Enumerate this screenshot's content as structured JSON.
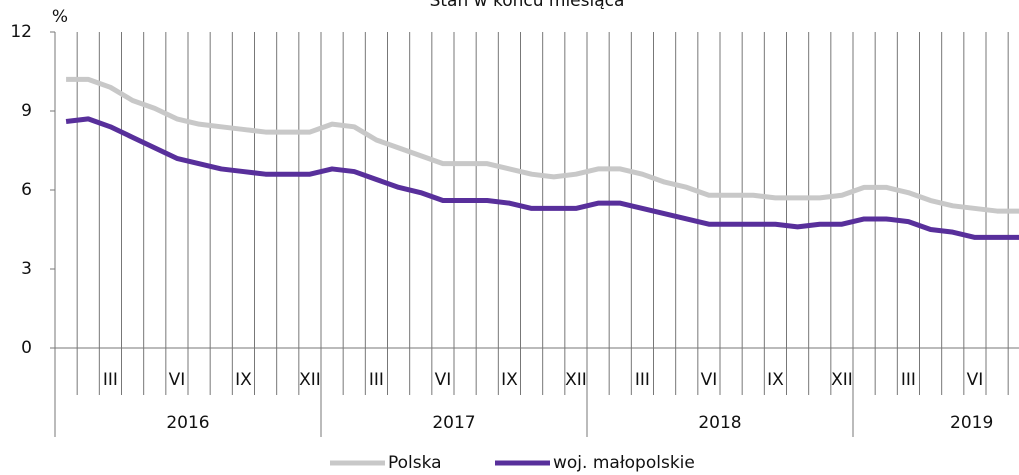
{
  "chart_data": {
    "type": "line",
    "title": "Stan w końcu miesiąca",
    "y_label": "%",
    "categories": [
      null,
      null,
      "III",
      null,
      null,
      "VI",
      null,
      null,
      "IX",
      null,
      null,
      "XII",
      null,
      null,
      "III",
      null,
      null,
      "VI",
      null,
      null,
      "IX",
      null,
      null,
      "XII",
      null,
      null,
      "III",
      null,
      null,
      "VI",
      null,
      null,
      "IX",
      null,
      null,
      "XII",
      null,
      null,
      "III",
      null,
      null,
      "VI",
      null,
      null
    ],
    "years": [
      "2016",
      "2017",
      "2018",
      "2019"
    ],
    "series": [
      {
        "name": "Polska",
        "color": "#c8c8c8",
        "values": [
          10.2,
          10.2,
          9.9,
          9.4,
          9.1,
          8.7,
          8.5,
          8.4,
          8.3,
          8.2,
          8.2,
          8.2,
          8.5,
          8.4,
          7.9,
          7.6,
          7.3,
          7.0,
          7.0,
          7.0,
          6.8,
          6.6,
          6.5,
          6.6,
          6.8,
          6.8,
          6.6,
          6.3,
          6.1,
          5.8,
          5.8,
          5.8,
          5.7,
          5.7,
          5.7,
          5.8,
          6.1,
          6.1,
          5.9,
          5.6,
          5.4,
          5.3,
          5.2,
          5.2
        ]
      },
      {
        "name": "woj. małopolskie",
        "color": "#582f9b",
        "values": [
          8.6,
          8.7,
          8.4,
          8.0,
          7.6,
          7.2,
          7.0,
          6.8,
          6.7,
          6.6,
          6.6,
          6.6,
          6.8,
          6.7,
          6.4,
          6.1,
          5.9,
          5.6,
          5.6,
          5.6,
          5.5,
          5.3,
          5.3,
          5.3,
          5.5,
          5.5,
          5.3,
          5.1,
          4.9,
          4.7,
          4.7,
          4.7,
          4.7,
          4.6,
          4.7,
          4.7,
          4.9,
          4.9,
          4.8,
          4.5,
          4.4,
          4.2,
          4.2,
          4.2
        ]
      }
    ],
    "ylim": [
      0,
      12
    ],
    "yticks": [
      0,
      3,
      6,
      9,
      12
    ],
    "grid": false,
    "legend": "bottom"
  }
}
